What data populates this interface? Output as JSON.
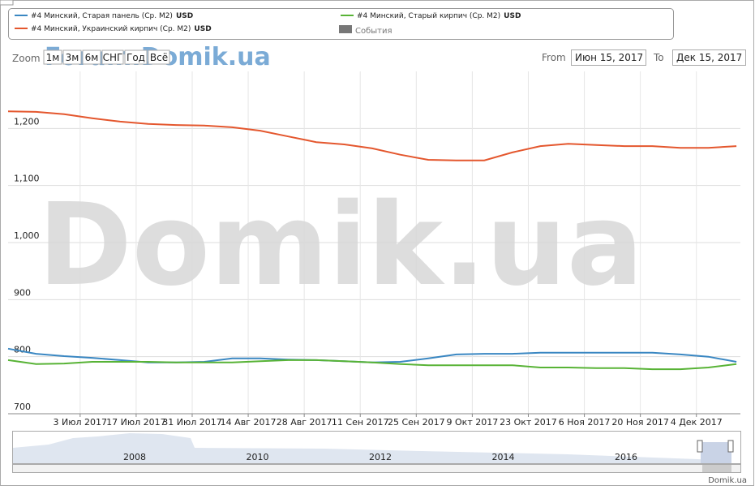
{
  "chart_data": {
    "type": "line",
    "legend_unit": "USD",
    "events_label": "События",
    "zoom": {
      "label": "Zoom",
      "buttons": [
        "1м",
        "3м",
        "6м",
        "СНГ",
        "Год",
        "Всё"
      ]
    },
    "range": {
      "from_label": "From",
      "from": "Июн 15, 2017",
      "to_label": "To",
      "to": "Дек 15, 2017"
    },
    "watermark": "Domik.ua",
    "watermark_small": "Forum.Domik.ua",
    "footer": "Domik.ua",
    "navigator_labels": [
      "2008",
      "2010",
      "2012",
      "2014",
      "2016"
    ],
    "x": [
      "2017-06-15",
      "2017-06-22",
      "2017-06-29",
      "2017-07-06",
      "2017-07-13",
      "2017-07-20",
      "2017-07-27",
      "2017-08-03",
      "2017-08-10",
      "2017-08-17",
      "2017-08-24",
      "2017-08-31",
      "2017-09-07",
      "2017-09-14",
      "2017-09-21",
      "2017-09-28",
      "2017-10-05",
      "2017-10-12",
      "2017-10-19",
      "2017-10-26",
      "2017-11-02",
      "2017-11-09",
      "2017-11-16",
      "2017-11-23",
      "2017-11-30",
      "2017-12-07",
      "2017-12-14"
    ],
    "xlim": [
      "2017-06-15",
      "2017-12-15"
    ],
    "xticks": [
      {
        "value": "2017-07-03",
        "label": "3 Июл 2017"
      },
      {
        "value": "2017-07-17",
        "label": "17 Июл 2017"
      },
      {
        "value": "2017-07-31",
        "label": "31 Июл 2017"
      },
      {
        "value": "2017-08-14",
        "label": "14 Авг 2017"
      },
      {
        "value": "2017-08-28",
        "label": "28 Авг 2017"
      },
      {
        "value": "2017-09-11",
        "label": "11 Сен 2017"
      },
      {
        "value": "2017-09-25",
        "label": "25 Сен 2017"
      },
      {
        "value": "2017-10-09",
        "label": "9 Окт 2017"
      },
      {
        "value": "2017-10-23",
        "label": "23 Окт 2017"
      },
      {
        "value": "2017-11-06",
        "label": "6 Ноя 2017"
      },
      {
        "value": "2017-11-20",
        "label": "20 Ноя 2017"
      },
      {
        "value": "2017-12-04",
        "label": "4 Дек 2017"
      }
    ],
    "ylim": [
      700,
      1300
    ],
    "yticks": [
      700,
      800,
      900,
      {
        "value": 1000,
        "label": "1,000"
      },
      {
        "value": 1100,
        "label": "1,100"
      },
      {
        "value": 1200,
        "label": "1,200"
      }
    ],
    "grid": true,
    "series": [
      {
        "name": "#4 Минский, Старая панель (Ср. М2)",
        "color": "#3a87c2",
        "values": [
          814,
          805,
          801,
          798,
          794,
          790,
          790,
          791,
          797,
          797,
          795,
          794,
          792,
          790,
          791,
          797,
          804,
          805,
          805,
          807,
          807,
          807,
          807,
          807,
          804,
          800,
          791
        ]
      },
      {
        "name": "#4 Минский, Украинский кирпич (Ср. М2)",
        "color": "#e4572e",
        "values": [
          1230,
          1229,
          1225,
          1218,
          1212,
          1208,
          1206,
          1205,
          1202,
          1196,
          1186,
          1176,
          1172,
          1165,
          1154,
          1145,
          1144,
          1144,
          1158,
          1169,
          1173,
          1171,
          1169,
          1169,
          1166,
          1166,
          1169
        ]
      },
      {
        "name": "#4 Минский, Старый кирпич (Ср. М2)",
        "color": "#58b336",
        "values": [
          794,
          787,
          788,
          791,
          791,
          791,
          790,
          790,
          790,
          792,
          794,
          794,
          792,
          790,
          787,
          785,
          785,
          785,
          785,
          781,
          781,
          780,
          780,
          778,
          778,
          781,
          787
        ]
      }
    ]
  }
}
